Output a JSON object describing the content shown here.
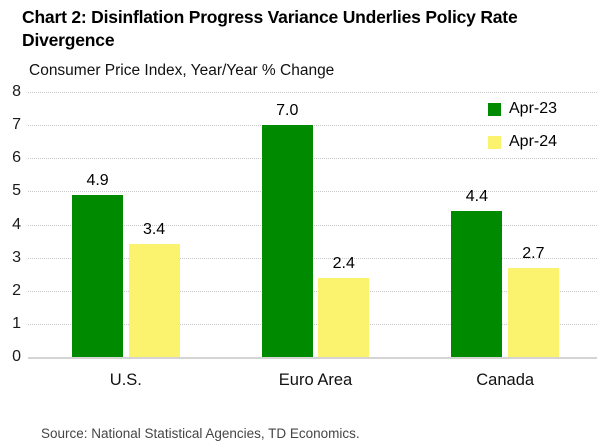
{
  "chart_data": {
    "type": "bar",
    "title": "Chart 2: Disinflation Progress Variance Underlies Policy Rate Divergence",
    "subtitle": "Consumer Price Index, Year/Year % Change",
    "categories": [
      "U.S.",
      "Euro Area",
      "Canada"
    ],
    "series": [
      {
        "name": "Apr-23",
        "color": "#008A00",
        "values": [
          4.9,
          7.0,
          4.4
        ],
        "labels": [
          "4.9",
          "7.0",
          "4.4"
        ]
      },
      {
        "name": "Apr-24",
        "color": "#FBF26D",
        "values": [
          3.4,
          2.4,
          2.7
        ],
        "labels": [
          "3.4",
          "2.4",
          "2.7"
        ]
      }
    ],
    "ylim": [
      0,
      8
    ],
    "yticks": [
      0,
      1,
      2,
      3,
      4,
      5,
      6,
      7,
      8
    ],
    "xlabel": "",
    "ylabel": "",
    "grid": "horizontal-dotted",
    "legend_position": "top-right",
    "gridline_color": "#C9C9C9"
  },
  "footer": {
    "source": "Source: National Statistical Agencies, TD Economics."
  }
}
